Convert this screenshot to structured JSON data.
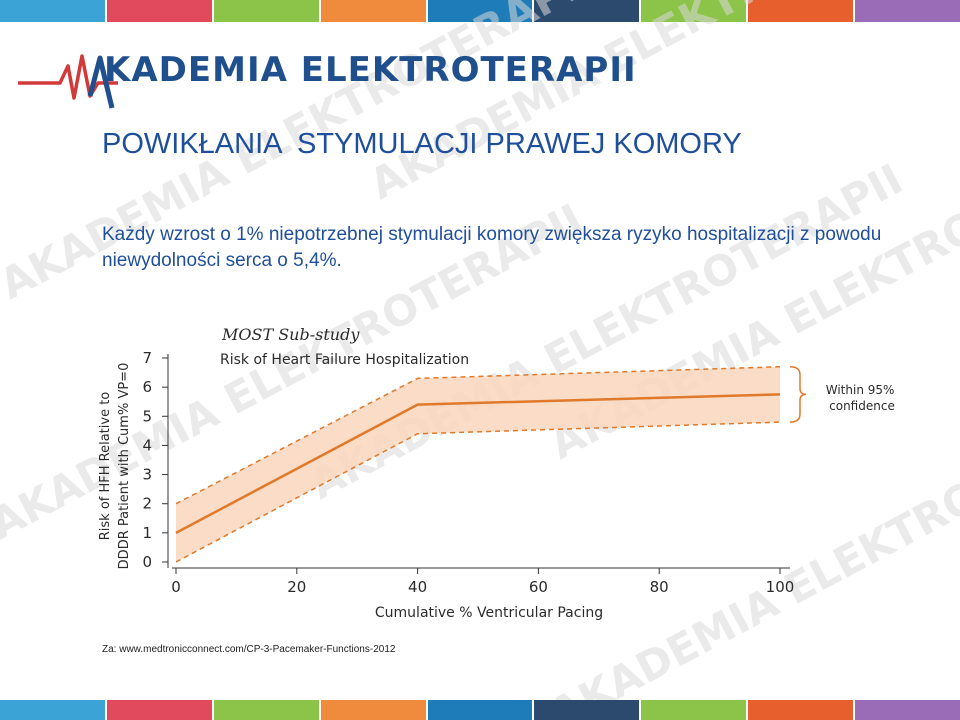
{
  "header": {
    "logo_text": "KADEMIA ELEKTROTERAPII",
    "stripe_colors": [
      "#3ba3d6",
      "#e04a5c",
      "#8cc44a",
      "#f08a3c",
      "#1e7db8",
      "#2c4a6e",
      "#8cc44a",
      "#e85f2e",
      "#9a6cb8"
    ]
  },
  "slide": {
    "title": "POWIKŁANIA  STYMULACJI PRAWEJ KOMORY",
    "subtitle": "Każdy wzrost o 1% niepotrzebnej stymulacji  komory zwiększa ryzyko hospitalizacji z powodu niewydolności serca o 5,4%.",
    "source": "Za: www.medtronicconnect.com/CP-3-Pacemaker-Functions-2012",
    "watermark_text": "AKADEMIA ELEKTROTERAPII"
  },
  "chart_data": {
    "type": "line",
    "title": "MOST Sub-study",
    "subtitle": "Risk of Heart Failure Hospitalization",
    "xlabel": "Cumulative % Ventricular Pacing",
    "ylabel_line1": "Risk of HFH Relative to",
    "ylabel_line2": "DDDR Patient with Cum% VP=0",
    "xlim": [
      0,
      100
    ],
    "ylim": [
      0,
      7
    ],
    "xticks": [
      "0",
      "20",
      "40",
      "60",
      "80",
      "100"
    ],
    "yticks": [
      "0",
      "1",
      "2",
      "3",
      "4",
      "5",
      "6",
      "7"
    ],
    "series": [
      {
        "values": [
          [
            0,
            1.0
          ],
          [
            40,
            5.4
          ],
          [
            100,
            5.75
          ]
        ],
        "color": "#e07a2a"
      }
    ],
    "band_upper": [
      [
        0,
        2.0
      ],
      [
        40,
        6.3
      ],
      [
        100,
        6.7
      ]
    ],
    "band_lower": [
      [
        0,
        0.0
      ],
      [
        40,
        4.4
      ],
      [
        100,
        4.8
      ]
    ],
    "band_color": "#f9d6bd",
    "annotation": "Within 95% confidence",
    "grid": false
  }
}
